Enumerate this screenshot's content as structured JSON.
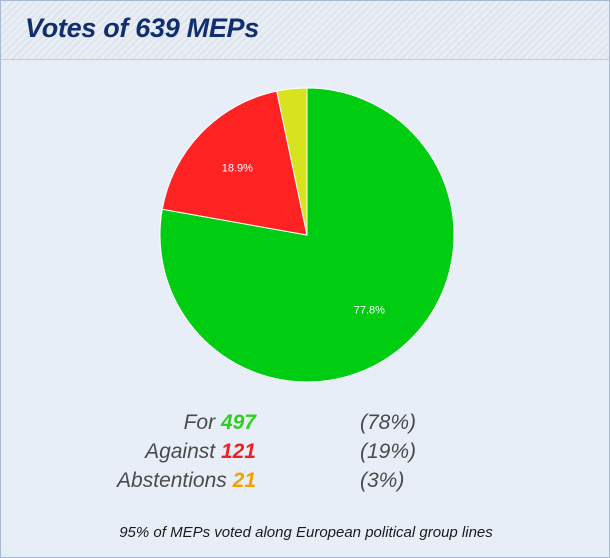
{
  "header": {
    "title": "Votes of 639 MEPs"
  },
  "chart_data": {
    "type": "pie",
    "slices": [
      {
        "label": "For",
        "value": 77.8,
        "color": "#00cc11",
        "data_label": "77.8%"
      },
      {
        "label": "Against",
        "value": 18.9,
        "color": "#ff2222",
        "data_label": "18.9%"
      },
      {
        "label": "Abstentions",
        "value": 3.3,
        "color": "#d6e31e",
        "data_label": ""
      }
    ]
  },
  "legend": [
    {
      "label": "For",
      "count": "497",
      "percent": "(78%)",
      "color": "#33cc22"
    },
    {
      "label": "Against",
      "count": "121",
      "percent": "(19%)",
      "color": "#ee2222"
    },
    {
      "label": "Abstentions",
      "count": "21",
      "percent": "(3%)",
      "color": "#f5a000"
    }
  ],
  "footnote": "95% of MEPs voted along European political group lines"
}
